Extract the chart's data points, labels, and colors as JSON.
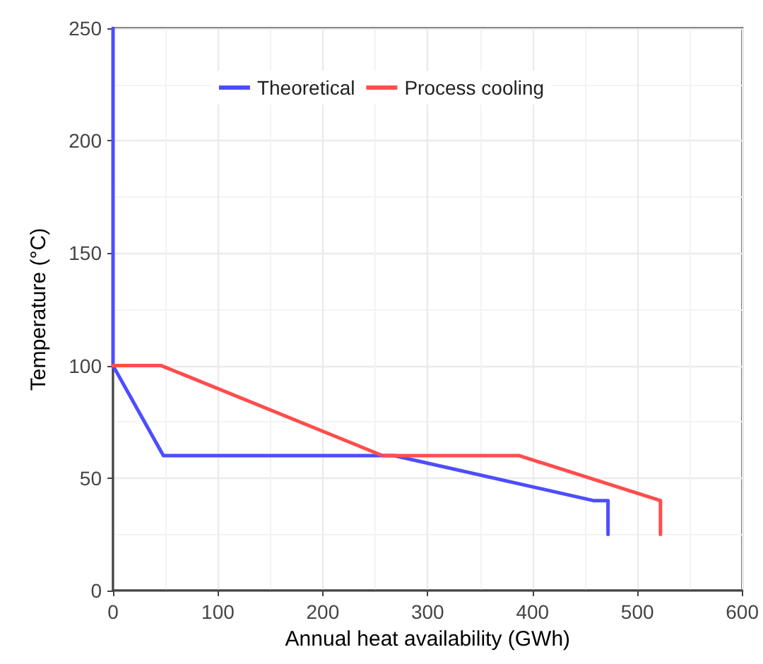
{
  "chart_data": {
    "type": "line",
    "xlabel": "Annual heat availability (GWh)",
    "ylabel": "Temperature (°C)",
    "xlim": [
      0,
      600
    ],
    "xticks": [
      0,
      100,
      200,
      300,
      400,
      500,
      600
    ],
    "ylim": [
      0,
      250
    ],
    "yticks": [
      0,
      50,
      100,
      150,
      200,
      250
    ],
    "grid": true,
    "legend": "top",
    "marker": "none",
    "line_style": "solid",
    "series": [
      {
        "name": "Theoretical",
        "color": "#4d4dff",
        "x": [
          0,
          0,
          48,
          268,
          458,
          472,
          472
        ],
        "values": [
          250,
          100,
          60,
          60,
          40,
          40,
          25
        ]
      },
      {
        "name": "Process cooling",
        "color": "#ff4d4d",
        "x": [
          0,
          46,
          257,
          387,
          522,
          522
        ],
        "values": [
          100,
          100,
          60,
          60,
          40,
          25
        ]
      }
    ]
  }
}
